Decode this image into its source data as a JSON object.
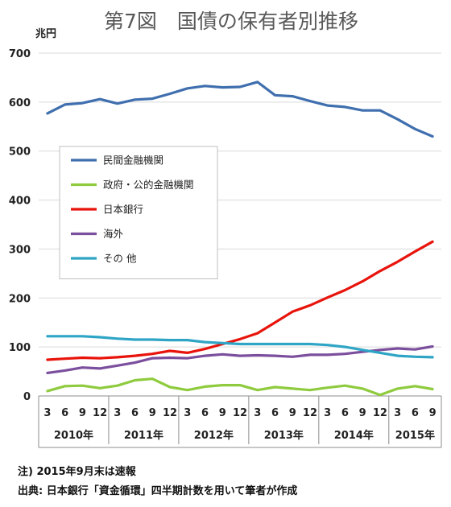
{
  "chart_data": {
    "type": "line",
    "title": "第7図　国債の保有者別推移",
    "unit_label": "兆円",
    "ylim": [
      0,
      700
    ],
    "y_ticks": [
      0,
      100,
      200,
      300,
      400,
      500,
      600,
      700
    ],
    "grid": true,
    "legend_position": "upper-left inside",
    "x": [
      "3",
      "6",
      "9",
      "12",
      "3",
      "6",
      "9",
      "12",
      "3",
      "6",
      "9",
      "12",
      "3",
      "6",
      "9",
      "12",
      "3",
      "6",
      "9",
      "12",
      "3",
      "6",
      "9"
    ],
    "year_groups": [
      {
        "label": "2010年",
        "count": 4
      },
      {
        "label": "2011年",
        "count": 4
      },
      {
        "label": "2012年",
        "count": 4
      },
      {
        "label": "2013年",
        "count": 4
      },
      {
        "label": "2014年",
        "count": 4
      },
      {
        "label": "2015年",
        "count": 3
      }
    ],
    "series": [
      {
        "name": "民間金融機関",
        "color": "#3f6fae",
        "values": [
          577,
          595,
          598,
          606,
          597,
          605,
          607,
          617,
          628,
          633,
          630,
          631,
          641,
          614,
          612,
          602,
          593,
          590,
          583,
          583,
          565,
          545,
          530
        ]
      },
      {
        "name": "政府・公的金融機関",
        "color": "#8fcb3e",
        "values": [
          10,
          20,
          21,
          16,
          21,
          32,
          35,
          18,
          12,
          19,
          22,
          22,
          12,
          18,
          15,
          12,
          17,
          21,
          15,
          2,
          15,
          20,
          14
        ]
      },
      {
        "name": "日本銀行",
        "color": "#e8140c",
        "values": [
          74,
          76,
          78,
          77,
          79,
          82,
          86,
          92,
          88,
          96,
          106,
          116,
          128,
          150,
          172,
          185,
          201,
          216,
          234,
          255,
          274,
          295,
          315
        ]
      },
      {
        "name": "海外",
        "color": "#7b4f9d",
        "values": [
          47,
          52,
          58,
          56,
          62,
          68,
          77,
          78,
          77,
          82,
          85,
          82,
          83,
          82,
          80,
          84,
          84,
          86,
          90,
          94,
          97,
          95,
          101
        ]
      },
      {
        "name": "その 他",
        "color": "#2fa5c6",
        "values": [
          122,
          122,
          122,
          120,
          117,
          115,
          115,
          114,
          114,
          110,
          108,
          106,
          106,
          106,
          106,
          106,
          104,
          100,
          94,
          88,
          82,
          80,
          79
        ]
      }
    ]
  },
  "notes": {
    "note1": "注) 2015年9月末は速報",
    "note2": "出典: 日本銀行「資金循環」四半期計数を用いて筆者が作成"
  }
}
